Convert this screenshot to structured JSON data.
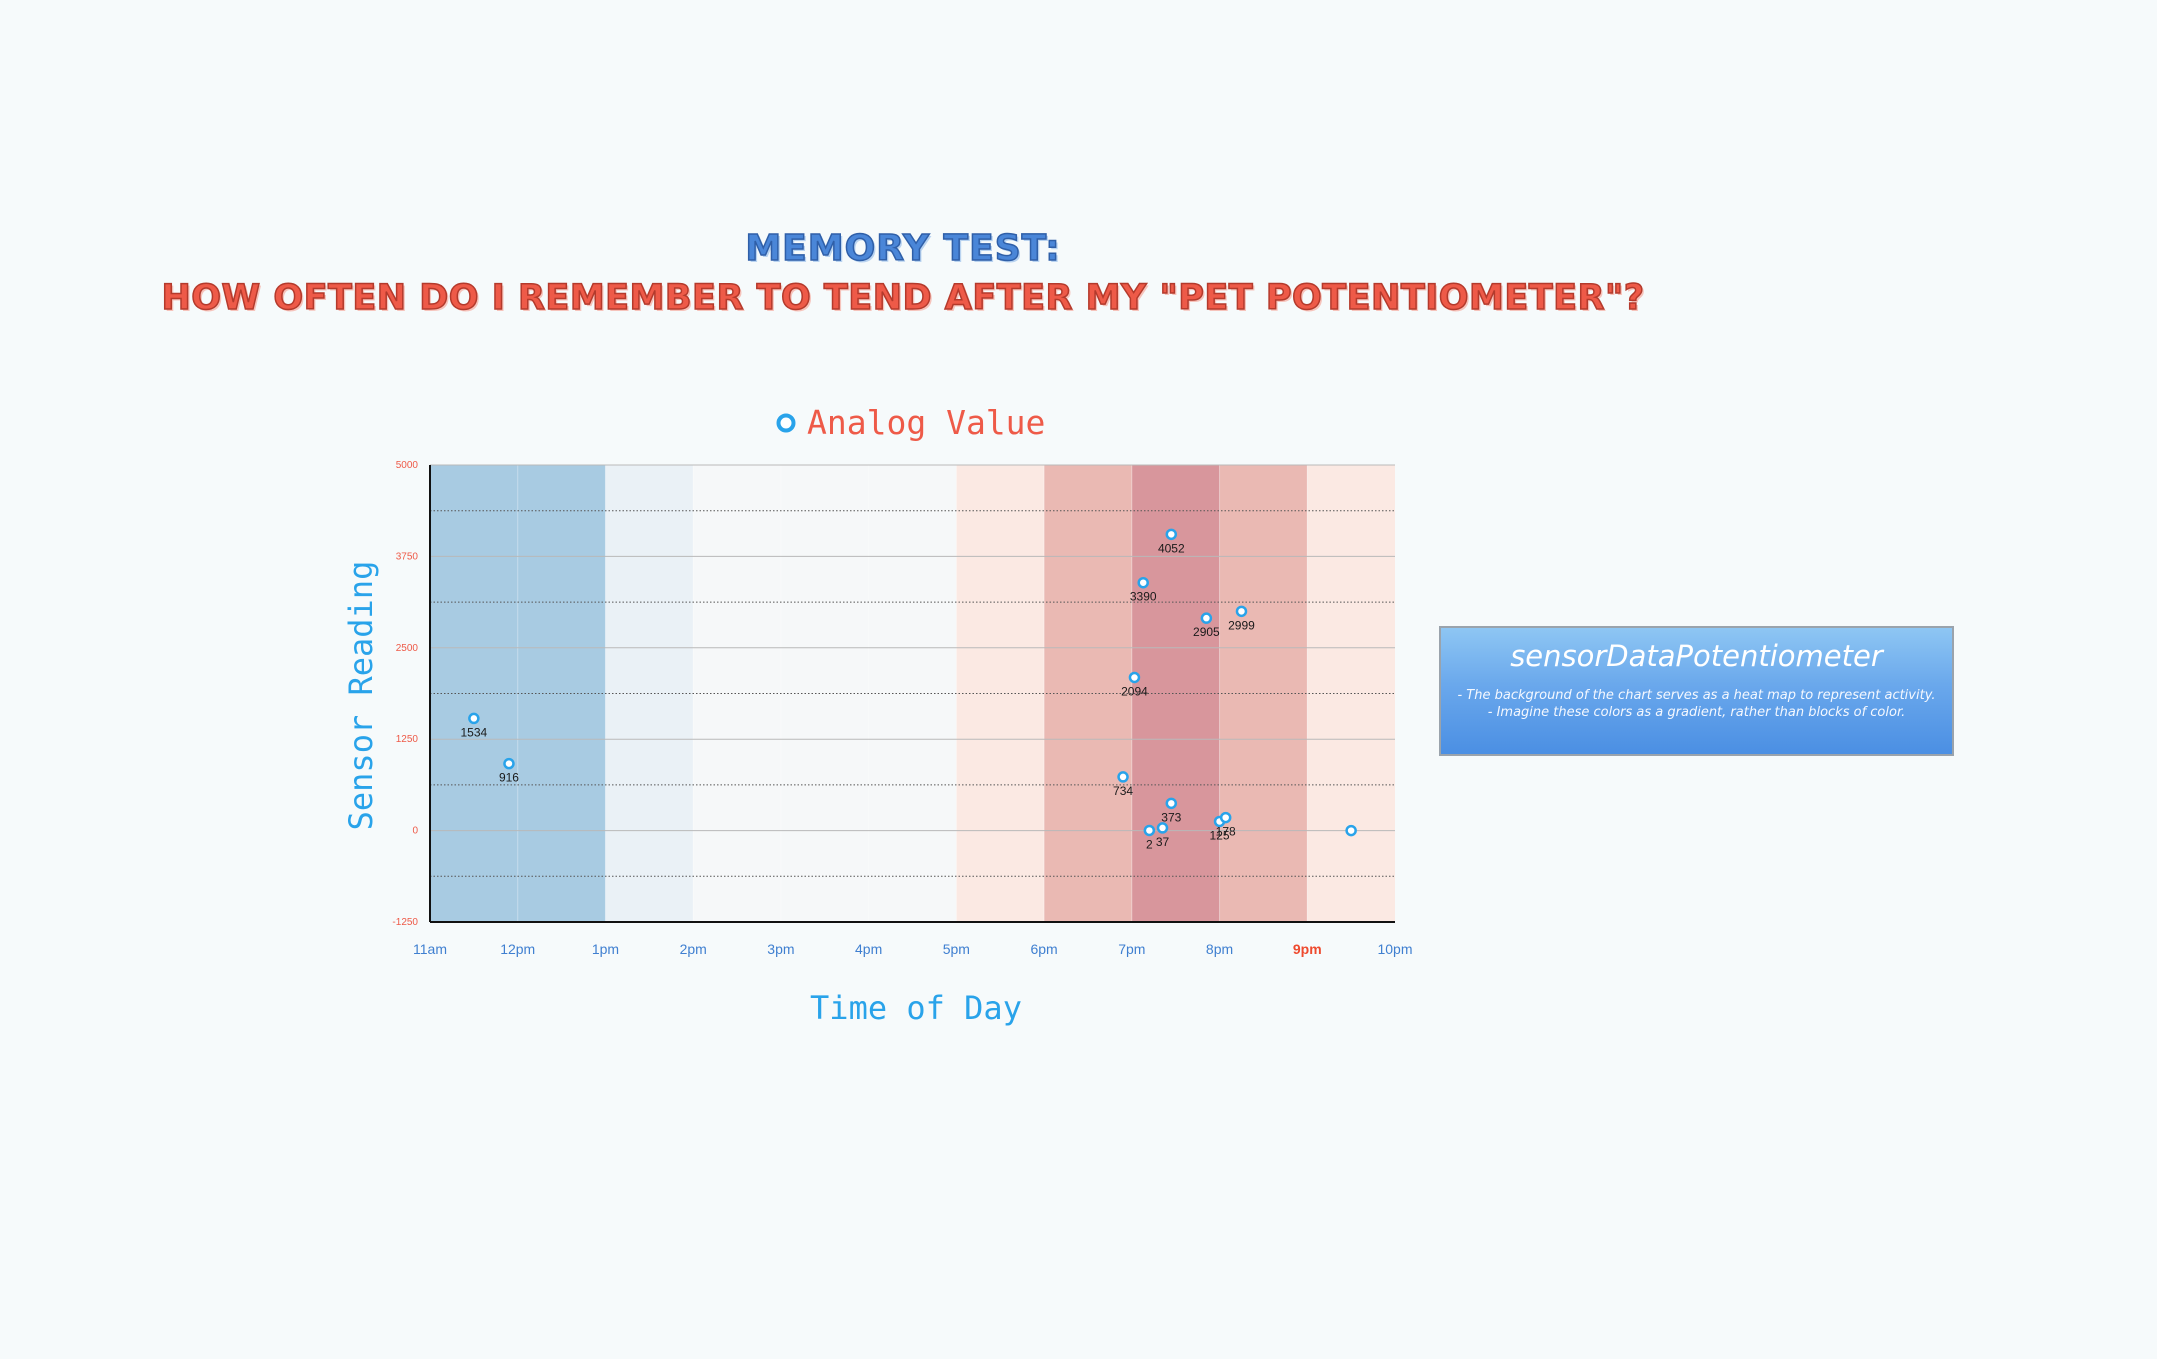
{
  "title": {
    "line1": "MEMORY TEST:",
    "line2": "HOW OFTEN DO I REMEMBER TO TEND AFTER MY \"PET POTENTIOMETER\"?"
  },
  "note": {
    "title": "sensorDataPotentiometer",
    "lines": [
      "- The background of the chart serves as a heat map to represent activity.",
      "- Imagine these colors as a gradient, rather than blocks of color."
    ]
  },
  "colors": {
    "title_blue": "#4a86d8",
    "title_red": "#ee5a48",
    "axis_label": "#29a3ea",
    "legend_text": "#ee5a48",
    "y_tick": "#ee5a48",
    "x_tick": "#3f7fd0",
    "x_tick_highlight": "#ee4a2e",
    "point_stroke": "#29a3ea"
  },
  "chart_data": {
    "type": "scatter",
    "legend": [
      "Analog Value"
    ],
    "legend_placement": "top-center",
    "xlabel": "Time of Day",
    "ylabel": "Sensor Reading",
    "ylim": [
      -1250,
      5000
    ],
    "y_ticks": [
      5000,
      3750,
      2500,
      1250,
      0,
      -1250
    ],
    "y_tick_labels": [
      "5000",
      "3750",
      "2500",
      "1250",
      "0",
      "-1250"
    ],
    "xlim": [
      11,
      22
    ],
    "x_ticks": [
      11,
      12,
      13,
      14,
      15,
      16,
      17,
      18,
      19,
      20,
      21,
      22
    ],
    "x_tick_labels": [
      "11am",
      "12pm",
      "1pm",
      "2pm",
      "3pm",
      "4pm",
      "5pm",
      "6pm",
      "7pm",
      "8pm",
      "9pm",
      "10pm"
    ],
    "highlighted_tick": "9pm",
    "grid": true,
    "heatmap_bands": [
      {
        "from": 11,
        "to": 13,
        "color": "#a8cbe2"
      },
      {
        "from": 13,
        "to": 14,
        "color": "#eaf1f6"
      },
      {
        "from": 14,
        "to": 17,
        "color": "#f6f8f9"
      },
      {
        "from": 17,
        "to": 18,
        "color": "#fbe9e3"
      },
      {
        "from": 18,
        "to": 19,
        "color": "#eab9b3"
      },
      {
        "from": 19,
        "to": 20,
        "color": "#d8969c"
      },
      {
        "from": 20,
        "to": 21,
        "color": "#eab9b3"
      },
      {
        "from": 21,
        "to": 22,
        "color": "#fbe9e3"
      }
    ],
    "series": [
      {
        "name": "Analog Value",
        "points": [
          {
            "x": 11.5,
            "y": 1534,
            "label": "1534"
          },
          {
            "x": 11.9,
            "y": 916,
            "label": "916"
          },
          {
            "x": 18.9,
            "y": 734,
            "label": "734"
          },
          {
            "x": 19.03,
            "y": 2094,
            "label": "2094"
          },
          {
            "x": 19.13,
            "y": 3390,
            "label": "3390"
          },
          {
            "x": 19.2,
            "y": 2,
            "label": "2"
          },
          {
            "x": 19.35,
            "y": 37,
            "label": "37"
          },
          {
            "x": 19.45,
            "y": 373,
            "label": "373"
          },
          {
            "x": 19.45,
            "y": 4052,
            "label": "4052"
          },
          {
            "x": 19.85,
            "y": 2905,
            "label": "2905"
          },
          {
            "x": 20.0,
            "y": 125,
            "label": "125"
          },
          {
            "x": 20.07,
            "y": 178,
            "label": "178"
          },
          {
            "x": 20.25,
            "y": 2999,
            "label": "2999"
          },
          {
            "x": 21.5,
            "y": 0,
            "label": ""
          }
        ]
      }
    ]
  }
}
